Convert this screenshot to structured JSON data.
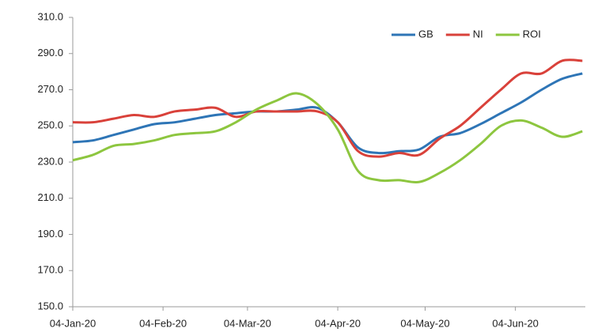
{
  "chart_data": {
    "type": "line",
    "x": [
      "04-Jan-20",
      "11-Jan-20",
      "18-Jan-20",
      "25-Jan-20",
      "01-Feb-20",
      "08-Feb-20",
      "15-Feb-20",
      "22-Feb-20",
      "29-Feb-20",
      "07-Mar-20",
      "14-Mar-20",
      "21-Mar-20",
      "28-Mar-20",
      "04-Apr-20",
      "11-Apr-20",
      "18-Apr-20",
      "25-Apr-20",
      "02-May-20",
      "09-May-20",
      "16-May-20",
      "23-May-20",
      "30-May-20",
      "06-Jun-20",
      "13-Jun-20",
      "20-Jun-20",
      "27-Jun-20"
    ],
    "series": [
      {
        "name": "GB",
        "color": "#2e75b6",
        "values": [
          241,
          242,
          245,
          248,
          251,
          252,
          254,
          256,
          257,
          258,
          258,
          259,
          260,
          252,
          238,
          235,
          236,
          237,
          244,
          246,
          251,
          257,
          263,
          270,
          276,
          279
        ]
      },
      {
        "name": "NI",
        "color": "#d9413a",
        "values": [
          252,
          252,
          254,
          256,
          255,
          258,
          259,
          260,
          255,
          258,
          258,
          258,
          258,
          252,
          236,
          233,
          235,
          234,
          243,
          250,
          260,
          270,
          279,
          279,
          286,
          286
        ]
      },
      {
        "name": "ROI",
        "color": "#8dc63f",
        "values": [
          231,
          234,
          239,
          240,
          242,
          245,
          246,
          247,
          252,
          259,
          264,
          268,
          262,
          248,
          225,
          220,
          220,
          219,
          224,
          231,
          240,
          250,
          253,
          249,
          244,
          247
        ]
      }
    ],
    "xlim": [
      "04-Jan-20",
      "28-Jun-20"
    ],
    "xticks": [
      "04-Jan-20",
      "04-Feb-20",
      "04-Mar-20",
      "04-Apr-20",
      "04-May-20",
      "04-Jun-20"
    ],
    "ylim": [
      150,
      310
    ],
    "yticks": [
      {
        "value": 150,
        "label": "150.0"
      },
      {
        "value": 170,
        "label": "170.0"
      },
      {
        "value": 190,
        "label": "190.0"
      },
      {
        "value": 210,
        "label": "210.0"
      },
      {
        "value": 230,
        "label": "230.0"
      },
      {
        "value": 250,
        "label": "250.0"
      },
      {
        "value": 270,
        "label": "270.0"
      },
      {
        "value": 290,
        "label": "290.0"
      },
      {
        "value": 310,
        "label": "310.0"
      }
    ],
    "grid": false,
    "legend": "top-right"
  }
}
